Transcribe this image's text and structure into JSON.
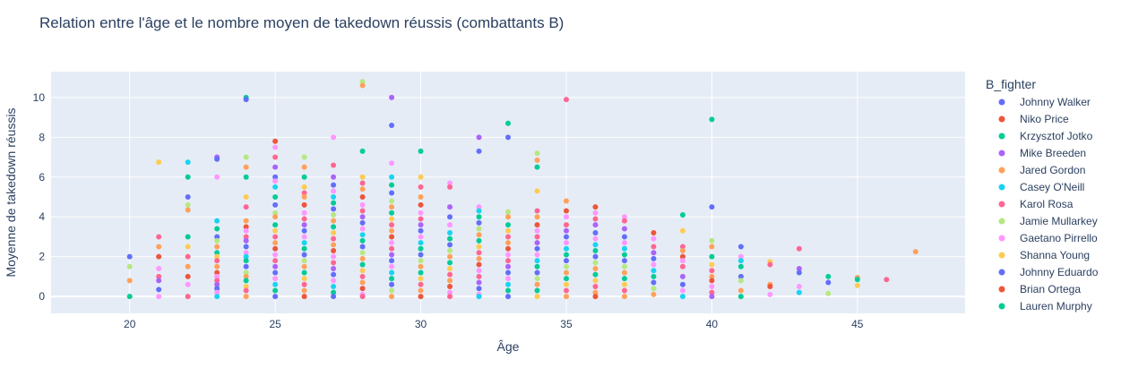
{
  "chart_data": {
    "type": "scatter",
    "title": "Relation entre l'âge et le nombre moyen de takedown réussis (combattants B)",
    "xlabel": "Âge",
    "ylabel": "Moyenne de takedown réussis",
    "xlim": [
      17.3,
      48.7
    ],
    "ylim": [
      -0.85,
      11.3
    ],
    "xticks": [
      20,
      25,
      30,
      35,
      40,
      45
    ],
    "yticks": [
      0,
      2,
      4,
      6,
      8,
      10
    ],
    "grid": true,
    "legend": {
      "title": "B_fighter",
      "placement": "right",
      "entries": [
        {
          "name": "Johnny Walker",
          "color": "#636efa"
        },
        {
          "name": "Niko Price",
          "color": "#EF553B"
        },
        {
          "name": "Krzysztof Jotko",
          "color": "#00cc96"
        },
        {
          "name": "Mike Breeden",
          "color": "#ab63fa"
        },
        {
          "name": "Jared Gordon",
          "color": "#FFA15A"
        },
        {
          "name": "Casey O'Neill",
          "color": "#19d3f3"
        },
        {
          "name": "Karol Rosa",
          "color": "#FF6692"
        },
        {
          "name": "Jamie Mullarkey",
          "color": "#B6E880"
        },
        {
          "name": "Gaetano Pirrello",
          "color": "#FF97FF"
        },
        {
          "name": "Shanna Young",
          "color": "#FECB52"
        },
        {
          "name": "Johnny Eduardo",
          "color": "#636efa"
        },
        {
          "name": "Brian Ortega",
          "color": "#EF553B"
        },
        {
          "name": "Lauren Murphy",
          "color": "#00cc96"
        }
      ]
    },
    "palette": [
      "#636efa",
      "#EF553B",
      "#00cc96",
      "#ab63fa",
      "#FFA15A",
      "#19d3f3",
      "#FF6692",
      "#B6E880",
      "#FF97FF",
      "#FECB52"
    ],
    "points": [
      [
        20,
        2.0
      ],
      [
        20,
        1.5
      ],
      [
        20,
        0.8
      ],
      [
        20,
        0.0
      ],
      [
        21,
        6.75
      ],
      [
        21,
        3.0
      ],
      [
        21,
        2.5
      ],
      [
        21,
        2.0
      ],
      [
        21,
        1.4
      ],
      [
        21,
        1.0
      ],
      [
        21,
        0.8
      ],
      [
        21,
        0.35
      ],
      [
        21,
        0.0
      ],
      [
        22,
        6.75
      ],
      [
        22,
        6.0
      ],
      [
        22,
        5.0
      ],
      [
        22,
        4.6
      ],
      [
        22,
        4.35
      ],
      [
        22,
        3.0
      ],
      [
        22,
        2.5
      ],
      [
        22,
        2.0
      ],
      [
        22,
        1.5
      ],
      [
        22,
        1.0
      ],
      [
        22,
        0.6
      ],
      [
        22,
        0.0
      ],
      [
        23,
        7.0
      ],
      [
        23,
        6.9
      ],
      [
        23,
        6.0
      ],
      [
        23,
        3.8
      ],
      [
        23,
        3.4
      ],
      [
        23,
        3.0
      ],
      [
        23,
        2.8
      ],
      [
        23,
        2.5
      ],
      [
        23,
        2.2
      ],
      [
        23,
        2.0
      ],
      [
        23,
        1.8
      ],
      [
        23,
        1.5
      ],
      [
        23,
        1.2
      ],
      [
        23,
        1.0
      ],
      [
        23,
        0.8
      ],
      [
        23,
        0.6
      ],
      [
        23,
        0.4
      ],
      [
        23,
        0.2
      ],
      [
        23,
        0.0
      ],
      [
        24,
        10.0
      ],
      [
        24,
        9.9
      ],
      [
        24,
        7.0
      ],
      [
        24,
        6.5
      ],
      [
        24,
        6.0
      ],
      [
        24,
        5.0
      ],
      [
        24,
        4.5
      ],
      [
        24,
        3.8
      ],
      [
        24,
        3.5
      ],
      [
        24,
        3.3
      ],
      [
        24,
        3.0
      ],
      [
        24,
        2.8
      ],
      [
        24,
        2.5
      ],
      [
        24,
        2.2
      ],
      [
        24,
        2.0
      ],
      [
        24,
        1.8
      ],
      [
        24,
        1.5
      ],
      [
        24,
        1.2
      ],
      [
        24,
        1.0
      ],
      [
        24,
        0.8
      ],
      [
        24,
        0.5
      ],
      [
        24,
        0.3
      ],
      [
        24,
        0.0
      ],
      [
        25,
        7.8
      ],
      [
        25,
        7.5
      ],
      [
        25,
        7.0
      ],
      [
        25,
        6.5
      ],
      [
        25,
        6.0
      ],
      [
        25,
        5.8
      ],
      [
        25,
        5.5
      ],
      [
        25,
        5.0
      ],
      [
        25,
        4.6
      ],
      [
        25,
        4.2
      ],
      [
        25,
        4.0
      ],
      [
        25,
        3.6
      ],
      [
        25,
        3.3
      ],
      [
        25,
        3.0
      ],
      [
        25,
        2.7
      ],
      [
        25,
        2.4
      ],
      [
        25,
        2.1
      ],
      [
        25,
        1.8
      ],
      [
        25,
        1.5
      ],
      [
        25,
        1.2
      ],
      [
        25,
        0.9
      ],
      [
        25,
        0.6
      ],
      [
        25,
        0.3
      ],
      [
        25,
        0.0
      ],
      [
        26,
        7.0
      ],
      [
        26,
        6.5
      ],
      [
        26,
        6.0
      ],
      [
        26,
        5.5
      ],
      [
        26,
        5.2
      ],
      [
        26,
        5.0
      ],
      [
        26,
        4.6
      ],
      [
        26,
        4.2
      ],
      [
        26,
        3.9
      ],
      [
        26,
        3.6
      ],
      [
        26,
        3.3
      ],
      [
        26,
        3.0
      ],
      [
        26,
        2.7
      ],
      [
        26,
        2.4
      ],
      [
        26,
        2.1
      ],
      [
        26,
        1.8
      ],
      [
        26,
        1.5
      ],
      [
        26,
        1.2
      ],
      [
        26,
        0.9
      ],
      [
        26,
        0.6
      ],
      [
        26,
        0.3
      ],
      [
        26,
        0.0
      ],
      [
        27,
        8.0
      ],
      [
        27,
        6.6
      ],
      [
        27,
        6.0
      ],
      [
        27,
        5.6
      ],
      [
        27,
        5.3
      ],
      [
        27,
        5.0
      ],
      [
        27,
        4.7
      ],
      [
        27,
        4.4
      ],
      [
        27,
        4.1
      ],
      [
        27,
        3.8
      ],
      [
        27,
        3.5
      ],
      [
        27,
        3.2
      ],
      [
        27,
        2.9
      ],
      [
        27,
        2.6
      ],
      [
        27,
        2.3
      ],
      [
        27,
        2.0
      ],
      [
        27,
        1.7
      ],
      [
        27,
        1.4
      ],
      [
        27,
        1.1
      ],
      [
        27,
        0.8
      ],
      [
        27,
        0.5
      ],
      [
        27,
        0.2
      ],
      [
        27,
        0.0
      ],
      [
        28,
        10.8
      ],
      [
        28,
        10.6
      ],
      [
        28,
        7.3
      ],
      [
        28,
        6.0
      ],
      [
        28,
        5.7
      ],
      [
        28,
        5.4
      ],
      [
        28,
        5.0
      ],
      [
        28,
        4.6
      ],
      [
        28,
        4.3
      ],
      [
        28,
        4.0
      ],
      [
        28,
        3.7
      ],
      [
        28,
        3.4
      ],
      [
        28,
        3.1
      ],
      [
        28,
        2.8
      ],
      [
        28,
        2.5
      ],
      [
        28,
        2.2
      ],
      [
        28,
        1.9
      ],
      [
        28,
        1.6
      ],
      [
        28,
        1.3
      ],
      [
        28,
        1.0
      ],
      [
        28,
        0.7
      ],
      [
        28,
        0.4
      ],
      [
        28,
        0.1
      ],
      [
        28,
        0.0
      ],
      [
        29,
        10.0
      ],
      [
        29,
        8.6
      ],
      [
        29,
        6.7
      ],
      [
        29,
        6.0
      ],
      [
        29,
        5.6
      ],
      [
        29,
        5.2
      ],
      [
        29,
        4.8
      ],
      [
        29,
        4.5
      ],
      [
        29,
        4.2
      ],
      [
        29,
        3.9
      ],
      [
        29,
        3.6
      ],
      [
        29,
        3.3
      ],
      [
        29,
        3.0
      ],
      [
        29,
        2.7
      ],
      [
        29,
        2.4
      ],
      [
        29,
        2.1
      ],
      [
        29,
        1.8
      ],
      [
        29,
        1.5
      ],
      [
        29,
        1.2
      ],
      [
        29,
        0.9
      ],
      [
        29,
        0.6
      ],
      [
        29,
        0.3
      ],
      [
        29,
        0.0
      ],
      [
        30,
        7.3
      ],
      [
        30,
        6.0
      ],
      [
        30,
        5.5
      ],
      [
        30,
        5.0
      ],
      [
        30,
        4.6
      ],
      [
        30,
        4.2
      ],
      [
        30,
        3.9
      ],
      [
        30,
        3.6
      ],
      [
        30,
        3.3
      ],
      [
        30,
        3.0
      ],
      [
        30,
        2.7
      ],
      [
        30,
        2.4
      ],
      [
        30,
        2.1
      ],
      [
        30,
        1.8
      ],
      [
        30,
        1.5
      ],
      [
        30,
        1.2
      ],
      [
        30,
        0.9
      ],
      [
        30,
        0.6
      ],
      [
        30,
        0.3
      ],
      [
        30,
        0.0
      ],
      [
        31,
        5.7
      ],
      [
        31,
        5.5
      ],
      [
        31,
        4.5
      ],
      [
        31,
        4.0
      ],
      [
        31,
        3.6
      ],
      [
        31,
        3.2
      ],
      [
        31,
        2.9
      ],
      [
        31,
        2.6
      ],
      [
        31,
        2.3
      ],
      [
        31,
        2.0
      ],
      [
        31,
        1.7
      ],
      [
        31,
        1.4
      ],
      [
        31,
        1.1
      ],
      [
        31,
        0.8
      ],
      [
        31,
        0.5
      ],
      [
        31,
        0.2
      ],
      [
        31,
        0.0
      ],
      [
        32,
        8.0
      ],
      [
        32,
        7.3
      ],
      [
        32,
        4.5
      ],
      [
        32,
        4.3
      ],
      [
        32,
        4.0
      ],
      [
        32,
        3.7
      ],
      [
        32,
        3.4
      ],
      [
        32,
        3.1
      ],
      [
        32,
        2.8
      ],
      [
        32,
        2.5
      ],
      [
        32,
        2.2
      ],
      [
        32,
        1.9
      ],
      [
        32,
        1.6
      ],
      [
        32,
        1.3
      ],
      [
        32,
        1.0
      ],
      [
        32,
        0.7
      ],
      [
        32,
        0.4
      ],
      [
        32,
        0.1
      ],
      [
        32,
        0.0
      ],
      [
        33,
        8.7
      ],
      [
        33,
        8.0
      ],
      [
        33,
        4.25
      ],
      [
        33,
        4.0
      ],
      [
        33,
        3.6
      ],
      [
        33,
        3.3
      ],
      [
        33,
        3.0
      ],
      [
        33,
        2.7
      ],
      [
        33,
        2.4
      ],
      [
        33,
        2.1
      ],
      [
        33,
        1.8
      ],
      [
        33,
        1.5
      ],
      [
        33,
        1.2
      ],
      [
        33,
        0.9
      ],
      [
        33,
        0.6
      ],
      [
        33,
        0.3
      ],
      [
        33,
        0.0
      ],
      [
        34,
        7.2
      ],
      [
        34,
        6.85
      ],
      [
        34,
        6.5
      ],
      [
        34,
        5.3
      ],
      [
        34,
        4.3
      ],
      [
        34,
        4.0
      ],
      [
        34,
        3.6
      ],
      [
        34,
        3.3
      ],
      [
        34,
        3.0
      ],
      [
        34,
        2.7
      ],
      [
        34,
        2.4
      ],
      [
        34,
        2.1
      ],
      [
        34,
        1.8
      ],
      [
        34,
        1.5
      ],
      [
        34,
        1.2
      ],
      [
        34,
        0.9
      ],
      [
        34,
        0.6
      ],
      [
        34,
        0.3
      ],
      [
        34,
        0.0
      ],
      [
        35,
        9.9
      ],
      [
        35,
        4.8
      ],
      [
        35,
        4.3
      ],
      [
        35,
        4.0
      ],
      [
        35,
        3.6
      ],
      [
        35,
        3.3
      ],
      [
        35,
        3.0
      ],
      [
        35,
        2.7
      ],
      [
        35,
        2.4
      ],
      [
        35,
        2.1
      ],
      [
        35,
        1.8
      ],
      [
        35,
        1.5
      ],
      [
        35,
        1.2
      ],
      [
        35,
        0.9
      ],
      [
        35,
        0.6
      ],
      [
        35,
        0.3
      ],
      [
        35,
        0.0
      ],
      [
        36,
        4.5
      ],
      [
        36,
        4.2
      ],
      [
        36,
        3.9
      ],
      [
        36,
        3.6
      ],
      [
        36,
        3.2
      ],
      [
        36,
        2.9
      ],
      [
        36,
        2.6
      ],
      [
        36,
        2.3
      ],
      [
        36,
        2.0
      ],
      [
        36,
        1.7
      ],
      [
        36,
        1.4
      ],
      [
        36,
        1.1
      ],
      [
        36,
        0.8
      ],
      [
        36,
        0.5
      ],
      [
        36,
        0.2
      ],
      [
        36,
        0.0
      ],
      [
        37,
        4.0
      ],
      [
        37,
        3.8
      ],
      [
        37,
        3.4
      ],
      [
        37,
        3.0
      ],
      [
        37,
        2.7
      ],
      [
        37,
        2.4
      ],
      [
        37,
        2.1
      ],
      [
        37,
        1.8
      ],
      [
        37,
        1.5
      ],
      [
        37,
        1.2
      ],
      [
        37,
        0.9
      ],
      [
        37,
        0.6
      ],
      [
        37,
        0.3
      ],
      [
        37,
        0.0
      ],
      [
        38,
        3.2
      ],
      [
        38,
        2.9
      ],
      [
        38,
        2.5
      ],
      [
        38,
        2.2
      ],
      [
        38,
        1.9
      ],
      [
        38,
        1.6
      ],
      [
        38,
        1.3
      ],
      [
        38,
        1.0
      ],
      [
        38,
        0.7
      ],
      [
        38,
        0.4
      ],
      [
        38,
        0.1
      ],
      [
        39,
        4.1
      ],
      [
        39,
        3.3
      ],
      [
        39,
        2.5
      ],
      [
        39,
        2.3
      ],
      [
        39,
        2.0
      ],
      [
        39,
        1.8
      ],
      [
        39,
        1.5
      ],
      [
        39,
        1.0
      ],
      [
        39,
        0.6
      ],
      [
        39,
        0.3
      ],
      [
        39,
        0.0
      ],
      [
        40,
        8.9
      ],
      [
        40,
        4.5
      ],
      [
        40,
        2.8
      ],
      [
        40,
        2.5
      ],
      [
        40,
        2.0
      ],
      [
        40,
        1.6
      ],
      [
        40,
        1.3
      ],
      [
        40,
        1.0
      ],
      [
        40,
        0.8
      ],
      [
        40,
        0.5
      ],
      [
        40,
        0.2
      ],
      [
        40,
        0.0
      ],
      [
        41,
        2.5
      ],
      [
        41,
        2.0
      ],
      [
        41,
        1.8
      ],
      [
        41,
        1.5
      ],
      [
        41,
        1.0
      ],
      [
        41,
        0.8
      ],
      [
        41,
        0.3
      ],
      [
        41,
        0.0
      ],
      [
        42,
        1.75
      ],
      [
        42,
        1.6
      ],
      [
        42,
        0.6
      ],
      [
        42,
        0.5
      ],
      [
        42,
        0.1
      ],
      [
        43,
        2.4
      ],
      [
        43,
        1.4
      ],
      [
        43,
        1.2
      ],
      [
        43,
        0.5
      ],
      [
        43,
        0.2
      ],
      [
        44,
        1.0
      ],
      [
        44,
        0.7
      ],
      [
        44,
        0.15
      ],
      [
        45,
        0.95
      ],
      [
        45,
        0.85
      ],
      [
        45,
        0.55
      ],
      [
        46,
        0.85
      ],
      [
        47,
        2.25
      ]
    ]
  }
}
